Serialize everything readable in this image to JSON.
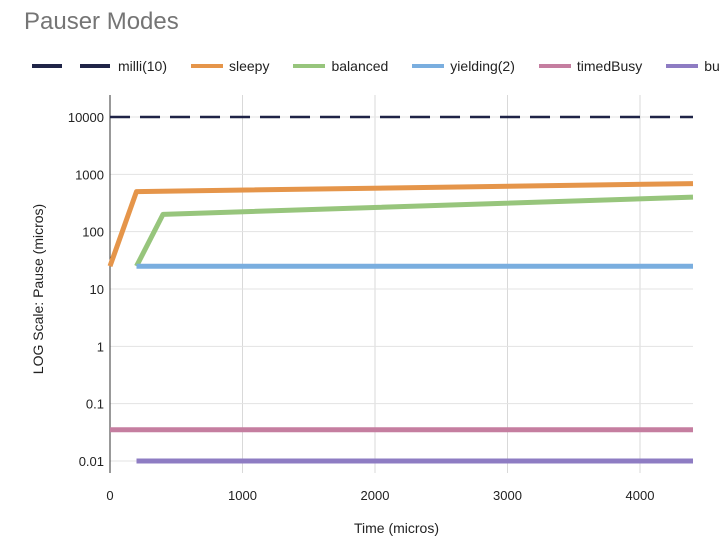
{
  "chart_data": {
    "type": "line",
    "title": "Pauser Modes",
    "xlabel": "Time (micros)",
    "ylabel": "LOG Scale: Pause (micros)",
    "yscale": "log",
    "xlim": [
      0,
      4400
    ],
    "ylim": [
      0.01,
      10000
    ],
    "xticks": [
      0,
      1000,
      2000,
      3000,
      4000
    ],
    "yticks": [
      0.01,
      0.1,
      1,
      10,
      100,
      1000,
      10000
    ],
    "xtick_labels": [
      "0",
      "1000",
      "2000",
      "3000",
      "4000"
    ],
    "ytick_labels": [
      "0.01",
      "0.1",
      "1",
      "10",
      "100",
      "1000",
      "10000"
    ],
    "grid": true,
    "legend_position": "top",
    "series": [
      {
        "name": "milli(10)",
        "color": "#1f2447",
        "dash": true,
        "points": [
          [
            0,
            10000
          ],
          [
            4400,
            10000
          ]
        ]
      },
      {
        "name": "sleepy",
        "color": "#e5954a",
        "dash": false,
        "points": [
          [
            0,
            25
          ],
          [
            200,
            500
          ],
          [
            4400,
            690
          ]
        ]
      },
      {
        "name": "balanced",
        "color": "#97c57c",
        "dash": false,
        "points": [
          [
            200,
            25
          ],
          [
            400,
            200
          ],
          [
            4400,
            400
          ]
        ]
      },
      {
        "name": "yielding(2)",
        "color": "#7aaedf",
        "dash": false,
        "points": [
          [
            200,
            25
          ],
          [
            4400,
            25
          ]
        ]
      },
      {
        "name": "timedBusy",
        "color": "#c57ea0",
        "dash": false,
        "points": [
          [
            0,
            0.035
          ],
          [
            4400,
            0.035
          ]
        ]
      },
      {
        "name": "busy",
        "color": "#8e7cc3",
        "dash": false,
        "points": [
          [
            200,
            0.01
          ],
          [
            4400,
            0.01
          ]
        ]
      }
    ]
  }
}
